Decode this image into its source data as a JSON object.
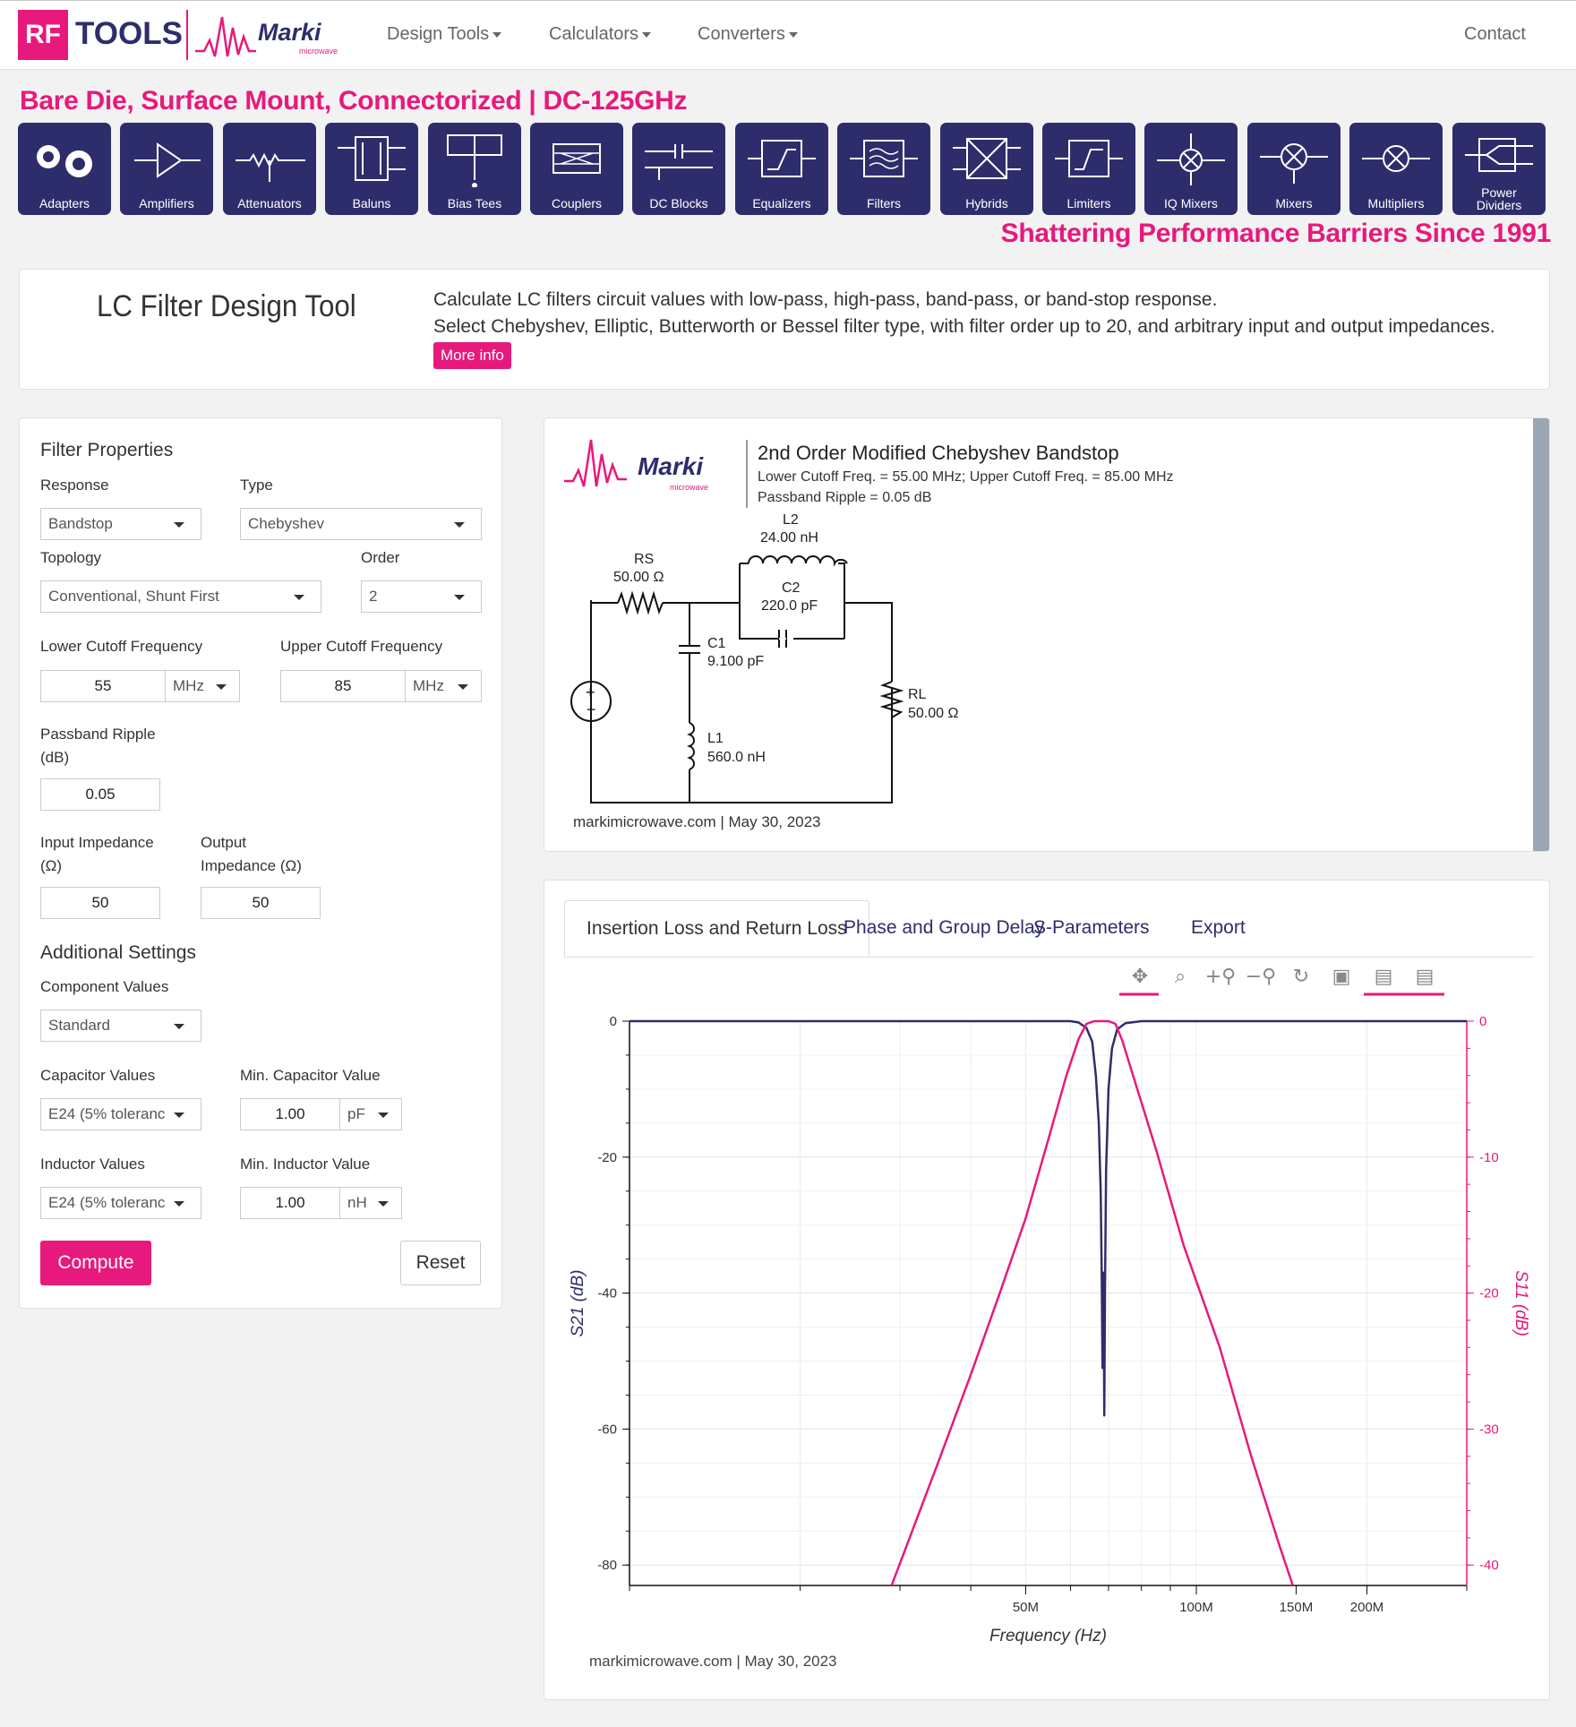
{
  "nav": {
    "logo_rf": "RF",
    "logo_tools": "TOOLS",
    "logo_marki": "Marki",
    "logo_marki_sub": "microwave",
    "items": [
      "Design Tools",
      "Calculators",
      "Converters"
    ],
    "contact": "Contact"
  },
  "banner": {
    "title": "Bare Die, Surface Mount, Connectorized | DC-125GHz",
    "tagline": "Shattering Performance Barriers Since 1991",
    "tiles": [
      {
        "label": "Adapters",
        "icon": "adapters-icon"
      },
      {
        "label": "Amplifiers",
        "icon": "amplifier-icon"
      },
      {
        "label": "Attenuators",
        "icon": "attenuator-icon"
      },
      {
        "label": "Baluns",
        "icon": "balun-icon"
      },
      {
        "label": "Bias Tees",
        "icon": "bias-tee-icon"
      },
      {
        "label": "Couplers",
        "icon": "coupler-icon"
      },
      {
        "label": "DC Blocks",
        "icon": "dc-block-icon"
      },
      {
        "label": "Equalizers",
        "icon": "equalizer-icon"
      },
      {
        "label": "Filters",
        "icon": "filter-icon"
      },
      {
        "label": "Hybrids",
        "icon": "hybrid-icon"
      },
      {
        "label": "Limiters",
        "icon": "limiter-icon"
      },
      {
        "label": "IQ Mixers",
        "icon": "iq-mixer-icon"
      },
      {
        "label": "Mixers",
        "icon": "mixer-icon"
      },
      {
        "label": "Multipliers",
        "icon": "multiplier-icon"
      },
      {
        "label": "Power Dividers",
        "icon": "power-divider-icon"
      }
    ]
  },
  "intro": {
    "title": "LC Filter Design Tool",
    "desc1": "Calculate LC filters circuit values with low-pass, high-pass, band-pass, or band-stop response.",
    "desc2": "Select Chebyshev, Elliptic, Butterworth or Bessel filter type, with filter order up to 20, and arbitrary input and output impedances.",
    "more_info": "More info"
  },
  "form": {
    "heading": "Filter Properties",
    "response_label": "Response",
    "response": "Bandstop",
    "type_label": "Type",
    "type": "Chebyshev",
    "topology_label": "Topology",
    "topology": "Conventional, Shunt First",
    "order_label": "Order",
    "order": "2",
    "lower_label": "Lower Cutoff Frequency",
    "lower": "55",
    "lower_unit": "MHz",
    "upper_label": "Upper Cutoff Frequency",
    "upper": "85",
    "upper_unit": "MHz",
    "ripple_label1": "Passband Ripple",
    "ripple_label2": "(dB)",
    "ripple": "0.05",
    "zin_label1": "Input Impedance",
    "zin_label2": "(Ω)",
    "zin": "50",
    "zout_label1": "Output",
    "zout_label2": "Impedance (Ω)",
    "zout": "50",
    "additional": "Additional Settings",
    "comp_label": "Component Values",
    "comp": "Standard",
    "cap_label": "Capacitor Values",
    "cap": "E24 (5% toleranc",
    "mincap_label": "Min. Capacitor Value",
    "mincap": "1.00",
    "mincap_unit": "pF",
    "ind_label": "Inductor Values",
    "ind": "E24 (5% toleranc",
    "minind_label": "Min. Inductor Value",
    "minind": "1.00",
    "minind_unit": "nH",
    "compute": "Compute",
    "reset": "Reset"
  },
  "schematic": {
    "title": "2nd Order Modified Chebyshev Bandstop",
    "line1": "Lower Cutoff Freq. = 55.00 MHz; Upper Cutoff Freq. = 85.00 MHz",
    "line2": "Passband Ripple = 0.05 dB",
    "rs": "RS",
    "rs_val": "50.00 Ω",
    "l2": "L2",
    "l2_val": "24.00 nH",
    "c2": "C2",
    "c2_val": "220.0 pF",
    "c1": "C1",
    "c1_val": "9.100 pF",
    "l1": "L1",
    "l1_val": "560.0 nH",
    "rl": "RL",
    "rl_val": "50.00 Ω",
    "stamp": "markimicrowave.com | May 30, 2023"
  },
  "tabs": [
    "Insertion Loss and Return Loss",
    "Phase and Group Delay",
    "S-Parameters",
    "Export"
  ],
  "toolbar": [
    "pan-icon",
    "box-zoom-icon",
    "zoom-in-icon",
    "zoom-out-icon",
    "reset-icon",
    "save-icon",
    "hover-icon",
    "hover-icon"
  ],
  "footer_stamp": "markimicrowave.com  |  May 30, 2023",
  "colors": {
    "brand_pink": "#e8197c",
    "navy": "#2e2d6b",
    "s21": "#2e2d6b",
    "s11": "#e8197c"
  },
  "chart_data": {
    "type": "line",
    "xlabel": "Frequency (Hz)",
    "ylabel": "S21 (dB)",
    "y2label": "S11 (dB)",
    "xscale": "log",
    "xlim": [
      10000000,
      300000000
    ],
    "ylim": [
      -83,
      0
    ],
    "y2lim": [
      -41.5,
      0
    ],
    "xticks": [
      {
        "v": 50000000,
        "label": "50M"
      },
      {
        "v": 100000000,
        "label": "100M"
      },
      {
        "v": 150000000,
        "label": "150M"
      },
      {
        "v": 200000000,
        "label": "200M"
      }
    ],
    "yticks": [
      0,
      -20,
      -40,
      -60,
      -80
    ],
    "y2ticks": [
      0,
      -10,
      -20,
      -30,
      -40
    ],
    "grid": true,
    "series": [
      {
        "name": "S21 (dB)",
        "axis": "left",
        "color": "#2e2d6b",
        "points": [
          [
            10000000,
            0
          ],
          [
            50000000,
            0
          ],
          [
            60000000,
            0
          ],
          [
            62000000,
            -0.2
          ],
          [
            64000000,
            -1
          ],
          [
            65500000,
            -3
          ],
          [
            66500000,
            -8
          ],
          [
            67300000,
            -15
          ],
          [
            67800000,
            -25
          ],
          [
            68100000,
            -38
          ],
          [
            68300000,
            -51
          ],
          [
            68400000,
            -40
          ],
          [
            68600000,
            -37
          ],
          [
            68800000,
            -58
          ],
          [
            69000000,
            -40
          ],
          [
            69300000,
            -22
          ],
          [
            70000000,
            -10
          ],
          [
            71000000,
            -4
          ],
          [
            72500000,
            -1.2
          ],
          [
            75000000,
            -0.3
          ],
          [
            80000000,
            0
          ],
          [
            300000000,
            0
          ]
        ]
      },
      {
        "name": "S11 (dB)",
        "axis": "right",
        "color": "#e8197c",
        "points": [
          [
            29000000,
            -41.5
          ],
          [
            35000000,
            -32.5
          ],
          [
            40000000,
            -26
          ],
          [
            45000000,
            -20
          ],
          [
            50000000,
            -14.5
          ],
          [
            55000000,
            -8.5
          ],
          [
            59000000,
            -4
          ],
          [
            62000000,
            -1.3
          ],
          [
            64000000,
            -0.2
          ],
          [
            66000000,
            0
          ],
          [
            70000000,
            0
          ],
          [
            72000000,
            -0.2
          ],
          [
            74000000,
            -1.4
          ],
          [
            78000000,
            -4.5
          ],
          [
            85000000,
            -9.5
          ],
          [
            95000000,
            -16.5
          ],
          [
            110000000,
            -24
          ],
          [
            125000000,
            -32
          ],
          [
            140000000,
            -38.5
          ],
          [
            148000000,
            -41.5
          ]
        ]
      }
    ]
  }
}
